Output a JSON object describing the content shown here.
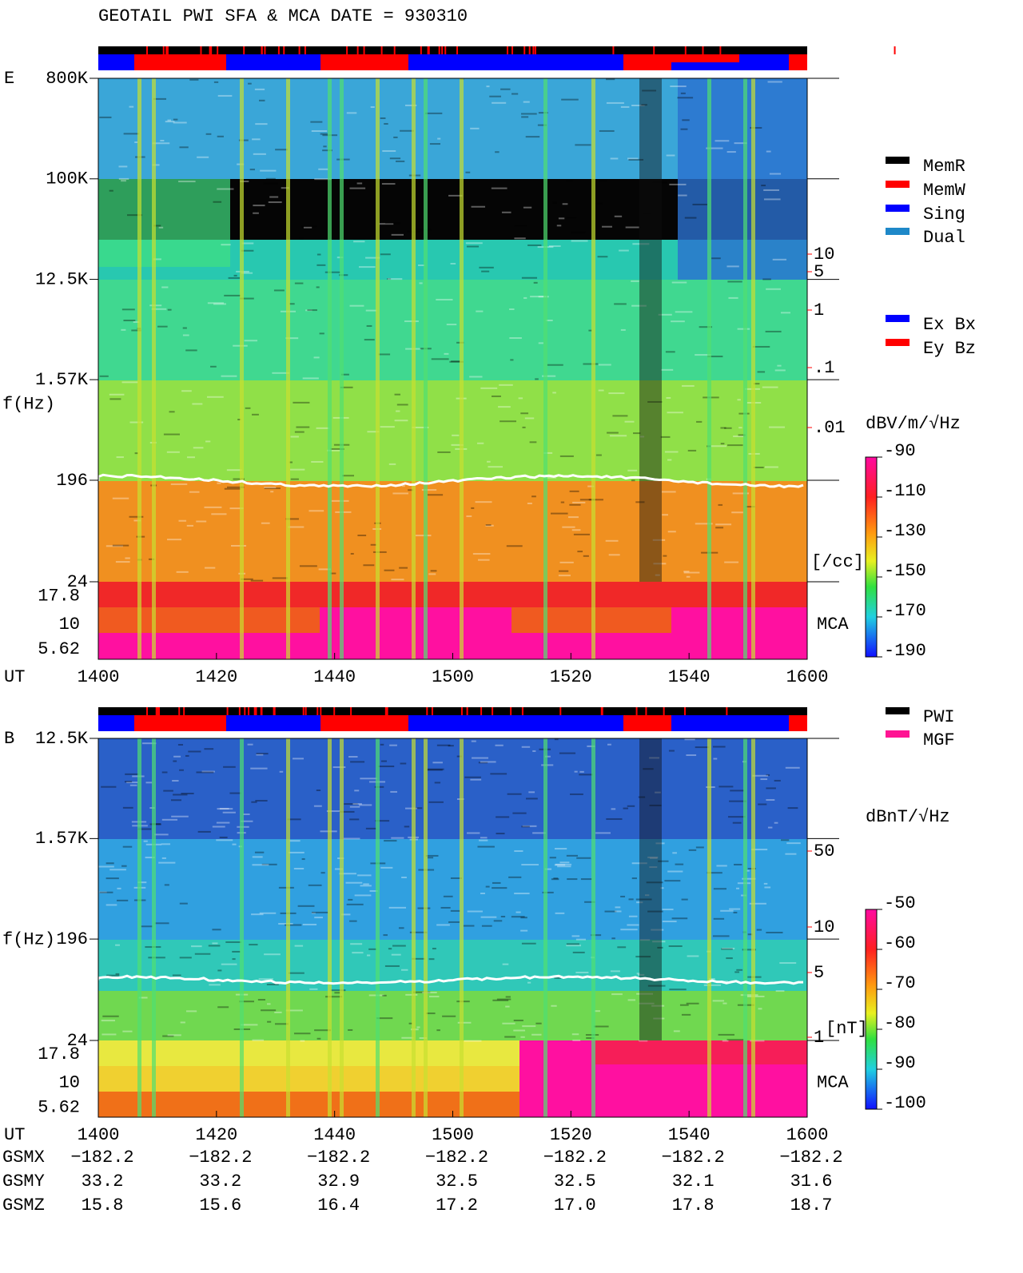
{
  "title": "GEOTAIL  PWI SFA & MCA   DATE = 930310",
  "chart_data": [
    {
      "type": "spectrogram",
      "panel": "E",
      "y_label": "f(Hz)",
      "x_label": "UT",
      "x_labels": [
        "1400",
        "1420",
        "1440",
        "1500",
        "1520",
        "1540",
        "1600"
      ],
      "ylim": [
        800000,
        24
      ],
      "log_y": true,
      "yticks": [
        {
          "value": 800000,
          "label": "800K"
        },
        {
          "value": 100000,
          "label": "100K"
        },
        {
          "value": 12500,
          "label": "12.5K"
        },
        {
          "value": 1570,
          "label": "1.57K"
        },
        196,
        24
      ],
      "mca_label": "MCA",
      "mca_ticks": [
        17.8,
        10,
        5.62
      ],
      "colorbar_label": "dBV/m/√Hz",
      "clim": [
        -90,
        -190
      ],
      "cticks": [
        -90,
        -110,
        -130,
        -150,
        -170,
        -190
      ],
      "density_ticks": [
        10,
        5,
        1,
        {
          "value": 0.1,
          "label": ".1"
        },
        {
          "value": 0.01,
          "label": ".01"
        }
      ],
      "density_unit": "[/cc]",
      "legend": [
        {
          "name": "MemR",
          "color": "#000000"
        },
        {
          "name": "MemW",
          "color": "#ff0000"
        },
        {
          "name": "Sing",
          "color": "#0000ff"
        },
        {
          "name": "Dual",
          "color": "#1e88c8"
        }
      ],
      "component_legend": [
        {
          "name": "Ex Bx",
          "color": "#0000ff"
        },
        {
          "name": "Ey Bz",
          "color": "#ff0000"
        }
      ]
    },
    {
      "type": "spectrogram",
      "panel": "B",
      "y_label": "f(Hz)",
      "x_label": "UT",
      "x_labels": [
        "1400",
        "1420",
        "1440",
        "1500",
        "1520",
        "1540",
        "1600"
      ],
      "ylim": [
        12500,
        24
      ],
      "log_y": true,
      "yticks": [
        {
          "value": 12500,
          "label": "12.5K"
        },
        {
          "value": 1570,
          "label": "1.57K"
        },
        196,
        24
      ],
      "mca_label": "MCA",
      "mca_ticks": [
        17.8,
        10,
        5.62
      ],
      "colorbar_label": "dBnT/√Hz",
      "clim": [
        -50,
        -100
      ],
      "cticks": [
        -50,
        -60,
        -70,
        -80,
        -90,
        -100
      ],
      "density_ticks": [
        50,
        10,
        5,
        1
      ],
      "density_unit": "[nT]",
      "legend": [
        {
          "name": "PWI",
          "color": "#000000"
        },
        {
          "name": "MGF",
          "color": "#ff1493"
        }
      ]
    }
  ],
  "orbit": {
    "rows": [
      {
        "label": "GSMX",
        "values": [
          "−182.2",
          "−182.2",
          "−182.2",
          "−182.2",
          "−182.2",
          "−182.2",
          "−182.2"
        ]
      },
      {
        "label": "GSMY",
        "values": [
          "33.2",
          "33.2",
          "32.9",
          "32.5",
          "32.5",
          "32.1",
          "31.6"
        ]
      },
      {
        "label": "GSMZ",
        "values": [
          "15.8",
          "15.6",
          "16.4",
          "17.2",
          "17.0",
          "17.8",
          "18.7"
        ]
      }
    ]
  }
}
